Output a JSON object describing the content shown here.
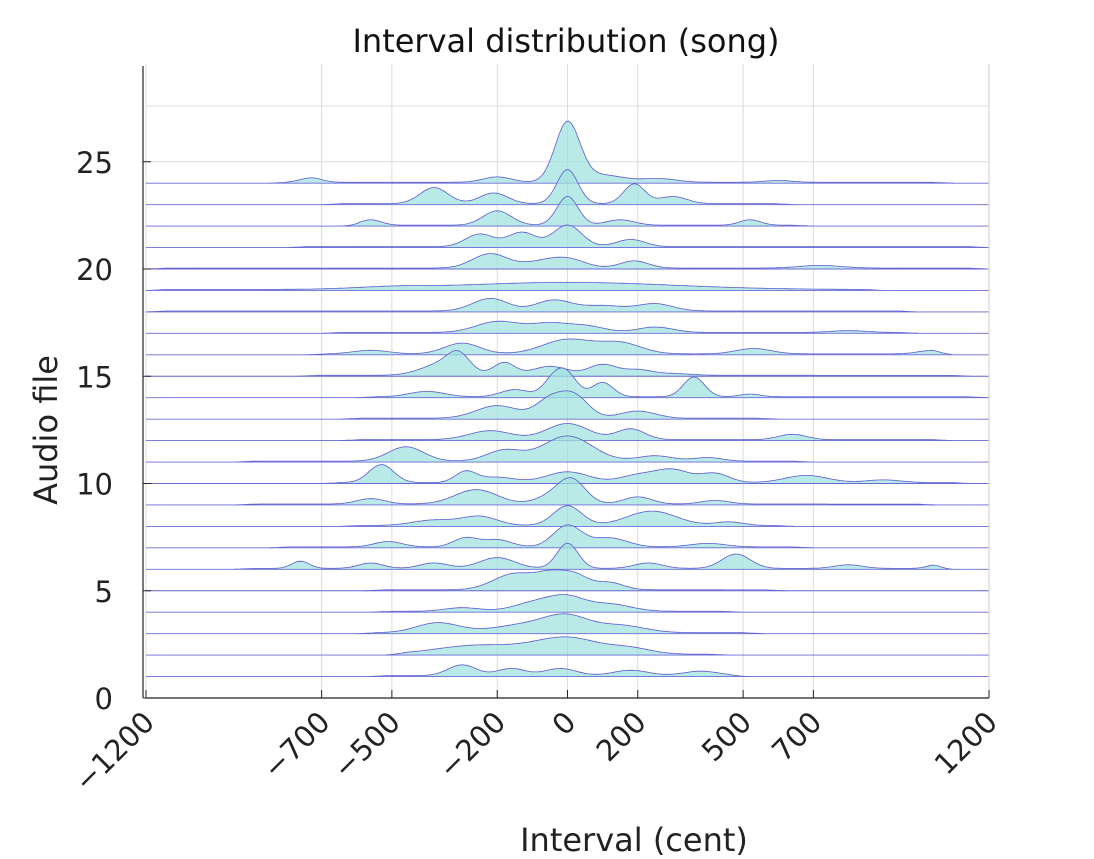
{
  "chart_data": {
    "type": "area",
    "title": "Interval distribution (song)",
    "xlabel": "Interval (cent)",
    "ylabel": "Audio file",
    "xlim": [
      -1200,
      1200
    ],
    "ylim": [
      0,
      28
    ],
    "x_ticks": [
      -1200,
      -700,
      -500,
      -200,
      0,
      200,
      500,
      700,
      1200
    ],
    "y_ticks": [
      0,
      5,
      10,
      15,
      20,
      25
    ],
    "grid": true,
    "fill_color": "#9fe2df",
    "line_color": "#5a5ad0",
    "baseline_color": "#6a6ad8",
    "series": [
      {
        "file": 1,
        "range": [
          -570,
          520
        ],
        "peaks": [
          [
            -300,
            0.6,
            40
          ],
          [
            -160,
            0.4,
            40
          ],
          [
            -20,
            0.4,
            45
          ],
          [
            180,
            0.3,
            50
          ],
          [
            380,
            0.25,
            50
          ]
        ]
      },
      {
        "file": 2,
        "range": [
          -520,
          460
        ],
        "peaks": [
          [
            -250,
            0.5,
            120
          ],
          [
            0,
            0.9,
            90
          ],
          [
            180,
            0.3,
            60
          ]
        ]
      },
      {
        "file": 3,
        "range": [
          -600,
          560
        ],
        "peaks": [
          [
            -370,
            0.55,
            60
          ],
          [
            -100,
            0.5,
            100
          ],
          [
            0,
            0.7,
            60
          ],
          [
            150,
            0.4,
            70
          ]
        ]
      },
      {
        "file": 4,
        "range": [
          -560,
          500
        ],
        "peaks": [
          [
            -300,
            0.2,
            50
          ],
          [
            -90,
            0.5,
            60
          ],
          [
            0,
            0.7,
            50
          ],
          [
            120,
            0.4,
            60
          ]
        ]
      },
      {
        "file": 5,
        "range": [
          -580,
          620
        ],
        "peaks": [
          [
            -150,
            0.9,
            60
          ],
          [
            -50,
            0.7,
            40
          ],
          [
            20,
            0.8,
            40
          ],
          [
            120,
            0.4,
            40
          ]
        ]
      },
      {
        "file": 6,
        "range": [
          -950,
          1100
        ],
        "peaks": [
          [
            -760,
            0.4,
            25
          ],
          [
            -560,
            0.3,
            35
          ],
          [
            -380,
            0.3,
            40
          ],
          [
            -200,
            0.6,
            50
          ],
          [
            0,
            1.4,
            30
          ],
          [
            230,
            0.3,
            40
          ],
          [
            480,
            0.8,
            40
          ],
          [
            800,
            0.2,
            40
          ],
          [
            1050,
            0.2,
            25
          ]
        ]
      },
      {
        "file": 7,
        "range": [
          -850,
          700
        ],
        "peaks": [
          [
            -510,
            0.3,
            40
          ],
          [
            -290,
            0.5,
            35
          ],
          [
            -200,
            0.4,
            40
          ],
          [
            0,
            1.2,
            40
          ],
          [
            120,
            0.5,
            50
          ],
          [
            400,
            0.2,
            50
          ]
        ]
      },
      {
        "file": 8,
        "range": [
          -650,
          650
        ],
        "peaks": [
          [
            -380,
            0.3,
            60
          ],
          [
            -250,
            0.5,
            50
          ],
          [
            0,
            1.1,
            40
          ],
          [
            240,
            0.8,
            70
          ],
          [
            460,
            0.2,
            40
          ]
        ]
      },
      {
        "file": 9,
        "range": [
          -950,
          1050
        ],
        "peaks": [
          [
            -560,
            0.3,
            40
          ],
          [
            -260,
            0.8,
            60
          ],
          [
            -60,
            0.3,
            40
          ],
          [
            10,
            1.4,
            40
          ],
          [
            200,
            0.4,
            40
          ],
          [
            420,
            0.2,
            40
          ]
        ]
      },
      {
        "file": 10,
        "range": [
          -700,
          1150
        ],
        "peaks": [
          [
            -530,
            1.0,
            35
          ],
          [
            -290,
            0.6,
            30
          ],
          [
            -200,
            0.3,
            50
          ],
          [
            0,
            0.6,
            60
          ],
          [
            200,
            0.4,
            50
          ],
          [
            300,
            0.7,
            50
          ],
          [
            420,
            0.5,
            40
          ],
          [
            680,
            0.4,
            60
          ],
          [
            900,
            0.15,
            50
          ]
        ]
      },
      {
        "file": 11,
        "range": [
          -950,
          700
        ],
        "peaks": [
          [
            -460,
            0.8,
            50
          ],
          [
            -180,
            0.6,
            50
          ],
          [
            0,
            1.4,
            70
          ],
          [
            250,
            0.3,
            50
          ],
          [
            400,
            0.2,
            40
          ]
        ]
      },
      {
        "file": 12,
        "range": [
          -650,
          1100
        ],
        "peaks": [
          [
            -220,
            0.5,
            60
          ],
          [
            0,
            0.9,
            60
          ],
          [
            180,
            0.6,
            40
          ],
          [
            640,
            0.3,
            40
          ]
        ]
      },
      {
        "file": 13,
        "range": [
          -650,
          600
        ],
        "peaks": [
          [
            -200,
            0.7,
            60
          ],
          [
            -50,
            1.0,
            40
          ],
          [
            20,
            1.2,
            40
          ],
          [
            200,
            0.4,
            50
          ]
        ]
      },
      {
        "file": 14,
        "range": [
          -600,
          1200
        ],
        "peaks": [
          [
            -400,
            0.3,
            50
          ],
          [
            -150,
            0.4,
            40
          ],
          [
            -40,
            0.9,
            30
          ],
          [
            0,
            1.1,
            30
          ],
          [
            100,
            0.8,
            30
          ],
          [
            360,
            1.1,
            30
          ],
          [
            520,
            0.15,
            30
          ]
        ]
      },
      {
        "file": 15,
        "range": [
          -770,
          1150
        ],
        "peaks": [
          [
            -350,
            0.7,
            60
          ],
          [
            -310,
            0.8,
            30
          ],
          [
            -180,
            0.7,
            30
          ],
          [
            -50,
            0.5,
            50
          ],
          [
            100,
            0.6,
            40
          ],
          [
            200,
            0.3,
            40
          ],
          [
            300,
            0.1,
            50
          ]
        ]
      },
      {
        "file": 16,
        "range": [
          -740,
          1100
        ],
        "peaks": [
          [
            -560,
            0.2,
            50
          ],
          [
            -300,
            0.6,
            50
          ],
          [
            0,
            0.8,
            70
          ],
          [
            150,
            0.6,
            60
          ],
          [
            530,
            0.3,
            50
          ],
          [
            1040,
            0.2,
            40
          ]
        ]
      },
      {
        "file": 17,
        "range": [
          -700,
          1000
        ],
        "peaks": [
          [
            -200,
            0.6,
            60
          ],
          [
            -50,
            0.5,
            60
          ],
          [
            60,
            0.3,
            50
          ],
          [
            250,
            0.3,
            50
          ],
          [
            800,
            0.1,
            50
          ]
        ]
      },
      {
        "file": 18,
        "range": [
          -1200,
          1000
        ],
        "peaks": [
          [
            -220,
            0.7,
            50
          ],
          [
            -40,
            0.6,
            50
          ],
          [
            100,
            0.3,
            60
          ],
          [
            250,
            0.4,
            50
          ]
        ]
      },
      {
        "file": 19,
        "range": [
          -1200,
          900
        ],
        "peaks": [
          [
            -500,
            0.1,
            100
          ],
          [
            0,
            0.4,
            300
          ]
        ]
      },
      {
        "file": 20,
        "range": [
          -1200,
          1200
        ],
        "peaks": [
          [
            -220,
            0.8,
            50
          ],
          [
            -80,
            0.3,
            50
          ],
          [
            0,
            0.5,
            50
          ],
          [
            190,
            0.4,
            40
          ],
          [
            720,
            0.15,
            60
          ]
        ]
      },
      {
        "file": 21,
        "range": [
          -800,
          1200
        ],
        "peaks": [
          [
            -250,
            0.7,
            40
          ],
          [
            -130,
            0.8,
            40
          ],
          [
            0,
            1.2,
            40
          ],
          [
            180,
            0.4,
            40
          ]
        ]
      },
      {
        "file": 22,
        "range": [
          -650,
          700
        ],
        "peaks": [
          [
            -560,
            0.3,
            30
          ],
          [
            -200,
            0.8,
            40
          ],
          [
            0,
            1.6,
            30
          ],
          [
            150,
            0.3,
            40
          ],
          [
            520,
            0.3,
            30
          ]
        ]
      },
      {
        "file": 23,
        "range": [
          -700,
          650
        ],
        "peaks": [
          [
            -380,
            0.9,
            40
          ],
          [
            -210,
            0.6,
            40
          ],
          [
            0,
            1.9,
            30
          ],
          [
            190,
            1.1,
            30
          ],
          [
            300,
            0.4,
            40
          ]
        ]
      },
      {
        "file": 24,
        "range": [
          -850,
          1100
        ],
        "peaks": [
          [
            -730,
            0.25,
            30
          ],
          [
            -200,
            0.3,
            40
          ],
          [
            0,
            3.3,
            35
          ],
          [
            100,
            0.4,
            60
          ],
          [
            260,
            0.2,
            50
          ],
          [
            600,
            0.1,
            40
          ]
        ]
      }
    ]
  }
}
